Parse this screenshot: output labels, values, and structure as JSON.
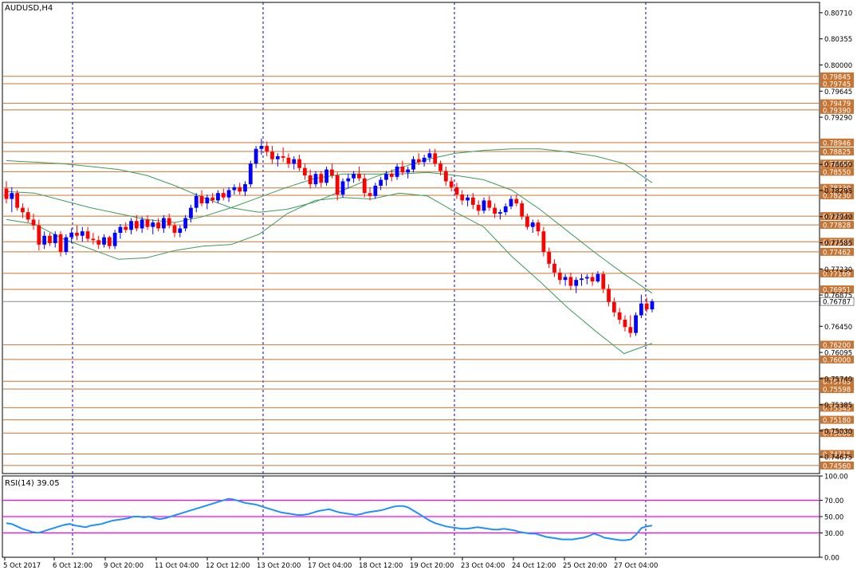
{
  "chart_title": "AUDUSD,H4",
  "rsi_label": "RSI(14) 39.05",
  "colors": {
    "bull": "#0000ff",
    "bear": "#ff0000",
    "level": "#c87533",
    "band": "#3c9b5a",
    "rsi": "#1e90ff",
    "rsi_level": "#ff00ff",
    "grid": "#0000cc",
    "current_price": "#8a8a8a",
    "axis": "#000000"
  },
  "chart_data": [
    {
      "type": "candlestick",
      "title": "AUDUSD,H4",
      "ylim": [
        0.7445,
        0.8085
      ],
      "price_ticks": [
        "0.80710",
        "0.80355",
        "0.80000",
        "0.79645",
        "0.79290",
        "0.78650",
        "0.78295",
        "0.77940",
        "0.77585",
        "0.77230",
        "0.76875",
        "0.76450",
        "0.76095",
        "0.75740",
        "0.75385",
        "0.75030",
        "0.74675"
      ],
      "level_labels": [
        "0.79845",
        "0.79745",
        "0.79479",
        "0.79390",
        "0.78946",
        "0.78825",
        "0.78660",
        "0.78550",
        "0.78330",
        "0.78230",
        "0.77947",
        "0.77828",
        "0.77598",
        "0.77462",
        "0.77169",
        "0.76951",
        "0.76200",
        "0.76000",
        "0.75703",
        "0.75598",
        "0.75345",
        "0.75180",
        "0.75000",
        "0.74715",
        "0.74560"
      ],
      "current_price": "0.76787",
      "x_labels": [
        "5 Oct 2017",
        "6 Oct 12:00",
        "9 Oct 20:00",
        "11 Oct 04:00",
        "12 Oct 12:00",
        "13 Oct 20:00",
        "17 Oct 04:00",
        "18 Oct 12:00",
        "19 Oct 20:00",
        "23 Oct 04:00",
        "24 Oct 12:00",
        "25 Oct 20:00",
        "27 Oct 04:00"
      ],
      "time_markers": [
        "6 Oct 12:00",
        "13 Oct 20:00",
        "19 Oct 20:00",
        "27 Oct 04:00"
      ],
      "ohlc": [
        [
          0.7832,
          0.7842,
          0.7812,
          0.7818
        ],
        [
          0.7818,
          0.7834,
          0.78,
          0.7826
        ],
        [
          0.7826,
          0.783,
          0.7802,
          0.7806
        ],
        [
          0.7806,
          0.7812,
          0.7792,
          0.78
        ],
        [
          0.78,
          0.7806,
          0.7786,
          0.779
        ],
        [
          0.779,
          0.7798,
          0.7776,
          0.7782
        ],
        [
          0.7782,
          0.779,
          0.7748,
          0.7756
        ],
        [
          0.7756,
          0.7774,
          0.775,
          0.7768
        ],
        [
          0.7768,
          0.7772,
          0.7754,
          0.7758
        ],
        [
          0.7758,
          0.7774,
          0.7752,
          0.777
        ],
        [
          0.777,
          0.7774,
          0.774,
          0.7746
        ],
        [
          0.7746,
          0.777,
          0.7742,
          0.7766
        ],
        [
          0.7766,
          0.7778,
          0.7758,
          0.7772
        ],
        [
          0.7772,
          0.7782,
          0.7762,
          0.7768
        ],
        [
          0.7768,
          0.778,
          0.776,
          0.7774
        ],
        [
          0.7774,
          0.778,
          0.776,
          0.7764
        ],
        [
          0.7764,
          0.7772,
          0.7756,
          0.7762
        ],
        [
          0.7762,
          0.7768,
          0.775,
          0.7756
        ],
        [
          0.7756,
          0.777,
          0.7752,
          0.7766
        ],
        [
          0.7766,
          0.7768,
          0.775,
          0.7754
        ],
        [
          0.7754,
          0.7776,
          0.775,
          0.7772
        ],
        [
          0.7772,
          0.7784,
          0.7764,
          0.778
        ],
        [
          0.778,
          0.7786,
          0.7772,
          0.7776
        ],
        [
          0.7776,
          0.7792,
          0.777,
          0.7788
        ],
        [
          0.7788,
          0.7796,
          0.7774,
          0.7778
        ],
        [
          0.7778,
          0.7794,
          0.7772,
          0.779
        ],
        [
          0.779,
          0.7796,
          0.7776,
          0.778
        ],
        [
          0.778,
          0.779,
          0.777,
          0.7786
        ],
        [
          0.7786,
          0.7792,
          0.7774,
          0.7778
        ],
        [
          0.7778,
          0.7796,
          0.7772,
          0.7792
        ],
        [
          0.7792,
          0.7798,
          0.7778,
          0.7782
        ],
        [
          0.7782,
          0.7786,
          0.7766,
          0.7772
        ],
        [
          0.7772,
          0.7782,
          0.7766,
          0.7778
        ],
        [
          0.7778,
          0.7796,
          0.7774,
          0.7792
        ],
        [
          0.7792,
          0.781,
          0.7786,
          0.7806
        ],
        [
          0.7806,
          0.7826,
          0.78,
          0.7822
        ],
        [
          0.7822,
          0.783,
          0.7808,
          0.7812
        ],
        [
          0.7812,
          0.7824,
          0.7804,
          0.782
        ],
        [
          0.782,
          0.7826,
          0.7812,
          0.7816
        ],
        [
          0.7816,
          0.783,
          0.7812,
          0.7826
        ],
        [
          0.7826,
          0.7832,
          0.7816,
          0.782
        ],
        [
          0.782,
          0.7834,
          0.7814,
          0.783
        ],
        [
          0.783,
          0.7838,
          0.7824,
          0.7834
        ],
        [
          0.7834,
          0.784,
          0.7824,
          0.7828
        ],
        [
          0.7828,
          0.7842,
          0.7822,
          0.7838
        ],
        [
          0.7838,
          0.787,
          0.7834,
          0.7866
        ],
        [
          0.7866,
          0.789,
          0.786,
          0.7886
        ],
        [
          0.7886,
          0.79,
          0.7878,
          0.789
        ],
        [
          0.789,
          0.7896,
          0.7876,
          0.7882
        ],
        [
          0.7882,
          0.789,
          0.7866,
          0.7872
        ],
        [
          0.7872,
          0.788,
          0.7862,
          0.7876
        ],
        [
          0.7876,
          0.7888,
          0.7868,
          0.7874
        ],
        [
          0.7874,
          0.788,
          0.786,
          0.7866
        ],
        [
          0.7866,
          0.7876,
          0.7858,
          0.7872
        ],
        [
          0.7872,
          0.7878,
          0.7856,
          0.786
        ],
        [
          0.786,
          0.7866,
          0.7844,
          0.785
        ],
        [
          0.785,
          0.7858,
          0.7832,
          0.7838
        ],
        [
          0.7838,
          0.7856,
          0.7834,
          0.7852
        ],
        [
          0.7852,
          0.7856,
          0.7834,
          0.784
        ],
        [
          0.784,
          0.7862,
          0.7836,
          0.7858
        ],
        [
          0.7858,
          0.7866,
          0.7846,
          0.785
        ],
        [
          0.785,
          0.7854,
          0.7816,
          0.7824
        ],
        [
          0.7824,
          0.7846,
          0.782,
          0.7842
        ],
        [
          0.7842,
          0.7852,
          0.7832,
          0.7846
        ],
        [
          0.7846,
          0.7856,
          0.784,
          0.7852
        ],
        [
          0.7852,
          0.7862,
          0.7842,
          0.7846
        ],
        [
          0.7846,
          0.7852,
          0.782,
          0.7826
        ],
        [
          0.7826,
          0.7834,
          0.7816,
          0.7822
        ],
        [
          0.7822,
          0.784,
          0.7818,
          0.7836
        ],
        [
          0.7836,
          0.7848,
          0.783,
          0.7844
        ],
        [
          0.7844,
          0.7856,
          0.7836,
          0.7852
        ],
        [
          0.7852,
          0.7858,
          0.7842,
          0.7848
        ],
        [
          0.7848,
          0.7866,
          0.7844,
          0.7862
        ],
        [
          0.7862,
          0.787,
          0.785,
          0.7854
        ],
        [
          0.7854,
          0.7862,
          0.7846,
          0.7858
        ],
        [
          0.7858,
          0.7876,
          0.7854,
          0.7872
        ],
        [
          0.7872,
          0.788,
          0.7864,
          0.7868
        ],
        [
          0.7868,
          0.7878,
          0.7862,
          0.7874
        ],
        [
          0.7874,
          0.7886,
          0.7868,
          0.788
        ],
        [
          0.788,
          0.7886,
          0.7862,
          0.7866
        ],
        [
          0.7866,
          0.787,
          0.785,
          0.7856
        ],
        [
          0.7856,
          0.7862,
          0.7836,
          0.7842
        ],
        [
          0.7842,
          0.7848,
          0.7828,
          0.7834
        ],
        [
          0.7834,
          0.784,
          0.7818,
          0.7824
        ],
        [
          0.7824,
          0.783,
          0.781,
          0.7816
        ],
        [
          0.7816,
          0.7824,
          0.7808,
          0.782
        ],
        [
          0.782,
          0.7826,
          0.7804,
          0.781
        ],
        [
          0.781,
          0.7816,
          0.7796,
          0.7802
        ],
        [
          0.7802,
          0.782,
          0.7798,
          0.7816
        ],
        [
          0.7816,
          0.7822,
          0.7802,
          0.7806
        ],
        [
          0.7806,
          0.7812,
          0.7792,
          0.7798
        ],
        [
          0.7798,
          0.7804,
          0.779,
          0.78
        ],
        [
          0.78,
          0.7812,
          0.7796,
          0.7808
        ],
        [
          0.7808,
          0.7822,
          0.7804,
          0.7818
        ],
        [
          0.7818,
          0.7824,
          0.7808,
          0.7812
        ],
        [
          0.7812,
          0.7816,
          0.779,
          0.7794
        ],
        [
          0.7794,
          0.7798,
          0.7776,
          0.778
        ],
        [
          0.778,
          0.779,
          0.7772,
          0.7786
        ],
        [
          0.7786,
          0.779,
          0.7768,
          0.7774
        ],
        [
          0.7774,
          0.778,
          0.774,
          0.7746
        ],
        [
          0.7746,
          0.7752,
          0.7724,
          0.773
        ],
        [
          0.773,
          0.7736,
          0.7712,
          0.7718
        ],
        [
          0.7718,
          0.7724,
          0.7702,
          0.7708
        ],
        [
          0.7708,
          0.7716,
          0.77,
          0.7712
        ],
        [
          0.7712,
          0.7718,
          0.7694,
          0.77
        ],
        [
          0.77,
          0.7712,
          0.769,
          0.7708
        ],
        [
          0.7708,
          0.7716,
          0.77,
          0.771
        ],
        [
          0.771,
          0.7716,
          0.7702,
          0.7712
        ],
        [
          0.7712,
          0.7718,
          0.77,
          0.7706
        ],
        [
          0.7706,
          0.772,
          0.7704,
          0.7716
        ],
        [
          0.7716,
          0.772,
          0.769,
          0.7696
        ],
        [
          0.7696,
          0.7702,
          0.7672,
          0.7678
        ],
        [
          0.7678,
          0.7684,
          0.7658,
          0.7664
        ],
        [
          0.7664,
          0.767,
          0.7648,
          0.7654
        ],
        [
          0.7654,
          0.766,
          0.7638,
          0.7644
        ],
        [
          0.7644,
          0.766,
          0.763,
          0.7636
        ],
        [
          0.7636,
          0.7664,
          0.7632,
          0.766
        ],
        [
          0.766,
          0.7688,
          0.7656,
          0.7676
        ],
        [
          0.7676,
          0.7684,
          0.7664,
          0.7668
        ],
        [
          0.7668,
          0.7682,
          0.7664,
          0.7679
        ]
      ],
      "upper_band": [
        0.787,
        0.7868,
        0.7866,
        0.7862,
        0.7858,
        0.785,
        0.7836,
        0.782,
        0.7806,
        0.78,
        0.7804,
        0.7814,
        0.783,
        0.7846,
        0.786,
        0.7872,
        0.788,
        0.7884,
        0.7886,
        0.7886,
        0.7882,
        0.7876,
        0.7866,
        0.784
      ],
      "mid_band": [
        0.7828,
        0.7826,
        0.7816,
        0.7806,
        0.7798,
        0.779,
        0.7786,
        0.7794,
        0.7806,
        0.782,
        0.7834,
        0.7846,
        0.7852,
        0.7852,
        0.7852,
        0.7854,
        0.785,
        0.7844,
        0.783,
        0.7804,
        0.7774,
        0.7744,
        0.7716,
        0.769
      ],
      "lower_band": [
        0.779,
        0.7784,
        0.7764,
        0.775,
        0.7736,
        0.7738,
        0.7748,
        0.7754,
        0.7756,
        0.777,
        0.7798,
        0.7816,
        0.782,
        0.7818,
        0.7826,
        0.7822,
        0.78,
        0.778,
        0.774,
        0.7706,
        0.767,
        0.7638,
        0.7608,
        0.7622
      ]
    },
    {
      "type": "line",
      "title": "RSI(14) 39.05",
      "ylim": [
        0,
        100
      ],
      "ticks": [
        "100.00",
        "70.00",
        "50.00",
        "30.00",
        "0.00"
      ],
      "levels": [
        70,
        50,
        30
      ],
      "values": [
        42,
        41,
        38,
        35,
        33,
        31,
        30,
        32,
        34,
        36,
        38,
        40,
        41,
        39,
        38,
        37,
        39,
        40,
        41,
        43,
        45,
        46,
        47,
        48,
        50,
        50,
        49,
        50,
        48,
        47,
        48,
        50,
        52,
        54,
        56,
        58,
        60,
        62,
        64,
        66,
        68,
        70,
        72,
        71,
        69,
        67,
        66,
        65,
        63,
        61,
        59,
        57,
        55,
        54,
        53,
        52,
        52,
        53,
        55,
        57,
        58,
        59,
        57,
        55,
        54,
        53,
        52,
        53,
        55,
        56,
        57,
        58,
        60,
        62,
        63,
        63,
        61,
        57,
        53,
        49,
        45,
        42,
        40,
        38,
        37,
        36,
        35,
        35,
        36,
        37,
        36,
        35,
        34,
        34,
        35,
        34,
        33,
        31,
        30,
        29,
        29,
        27,
        25,
        24,
        23,
        22,
        22,
        22,
        23,
        24,
        26,
        29,
        27,
        24,
        23,
        22,
        21,
        21,
        22,
        28,
        36,
        38,
        39
      ]
    }
  ]
}
